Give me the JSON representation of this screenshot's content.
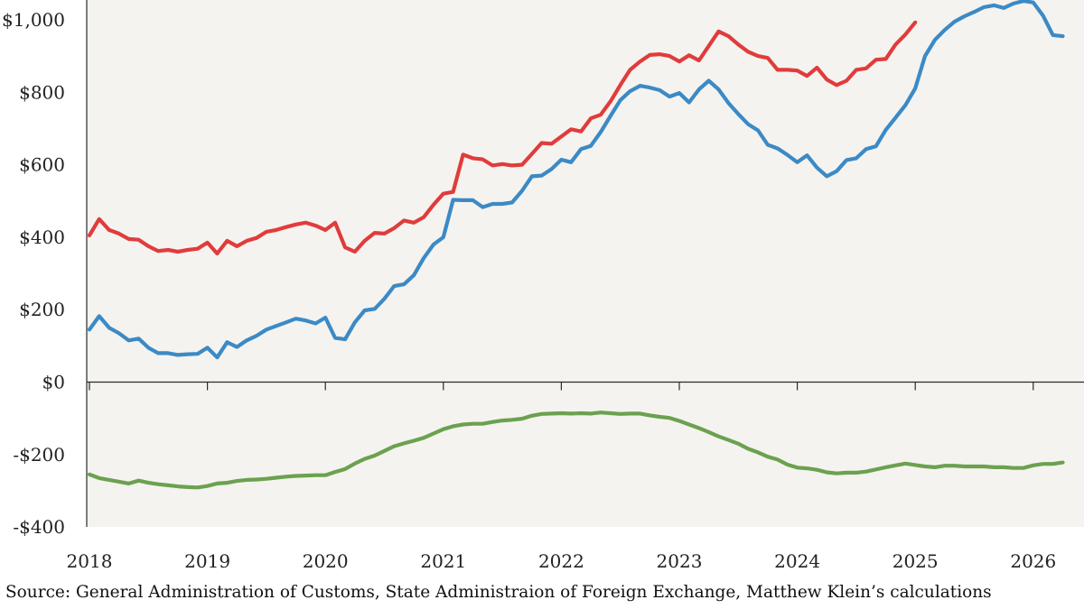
{
  "chart_data": {
    "type": "line",
    "source": "Source: General Administration of Customs, State Administraion of Foreign Exchange, Matthew Klein’s calculations",
    "x_labels": [
      "2018",
      "2019",
      "2020",
      "2021",
      "2022",
      "2023",
      "2024",
      "2025",
      "2026"
    ],
    "y_tick_labels": [
      "$1,000",
      "$800",
      "$600",
      "$400",
      "$200",
      "$0",
      "-$200",
      "-$400"
    ],
    "y_ticks": [
      1000,
      800,
      600,
      400,
      200,
      0,
      -200,
      -400
    ],
    "ylim": [
      -400,
      1000
    ],
    "grid": false,
    "series": [
      {
        "color": "#e03c3c",
        "x": [
          2018.0,
          2018.083,
          2018.167,
          2018.25,
          2018.333,
          2018.417,
          2018.5,
          2018.583,
          2018.667,
          2018.75,
          2018.833,
          2018.917,
          2019.0,
          2019.083,
          2019.167,
          2019.25,
          2019.333,
          2019.417,
          2019.5,
          2019.583,
          2019.667,
          2019.75,
          2019.833,
          2019.917,
          2020.0,
          2020.083,
          2020.167,
          2020.25,
          2020.333,
          2020.417,
          2020.5,
          2020.583,
          2020.667,
          2020.75,
          2020.833,
          2020.917,
          2021.0,
          2021.083,
          2021.167,
          2021.25,
          2021.333,
          2021.417,
          2021.5,
          2021.583,
          2021.667,
          2021.75,
          2021.833,
          2021.917,
          2022.0,
          2022.083,
          2022.167,
          2022.25,
          2022.333,
          2022.417,
          2022.5,
          2022.583,
          2022.667,
          2022.75,
          2022.833,
          2022.917,
          2023.0,
          2023.083,
          2023.167,
          2023.25,
          2023.333,
          2023.417,
          2023.5,
          2023.583,
          2023.667,
          2023.75,
          2023.833,
          2023.917,
          2024.0,
          2024.083,
          2024.167,
          2024.25,
          2024.333,
          2024.417,
          2024.5,
          2024.583,
          2024.667,
          2024.75,
          2024.833,
          2024.917,
          2025.0
        ],
        "values": [
          405,
          450,
          420,
          410,
          395,
          393,
          375,
          362,
          365,
          360,
          365,
          368,
          385,
          355,
          390,
          375,
          390,
          398,
          415,
          420,
          428,
          435,
          440,
          432,
          420,
          440,
          372,
          360,
          390,
          412,
          410,
          425,
          446,
          440,
          455,
          490,
          520,
          525,
          628,
          618,
          615,
          598,
          602,
          598,
          600,
          630,
          660,
          658,
          678,
          698,
          692,
          728,
          738,
          775,
          820,
          862,
          885,
          903,
          905,
          900,
          885,
          902,
          888,
          928,
          968,
          955,
          932,
          912,
          900,
          895,
          862,
          862,
          860,
          845,
          868,
          835,
          820,
          832,
          862,
          866,
          890,
          892,
          932,
          960,
          993
        ]
      },
      {
        "color": "#3b8ac6",
        "x": [
          2018.0,
          2018.083,
          2018.167,
          2018.25,
          2018.333,
          2018.417,
          2018.5,
          2018.583,
          2018.667,
          2018.75,
          2018.833,
          2018.917,
          2019.0,
          2019.083,
          2019.167,
          2019.25,
          2019.333,
          2019.417,
          2019.5,
          2019.583,
          2019.667,
          2019.75,
          2019.833,
          2019.917,
          2020.0,
          2020.083,
          2020.167,
          2020.25,
          2020.333,
          2020.417,
          2020.5,
          2020.583,
          2020.667,
          2020.75,
          2020.833,
          2020.917,
          2021.0,
          2021.083,
          2021.167,
          2021.25,
          2021.333,
          2021.417,
          2021.5,
          2021.583,
          2021.667,
          2021.75,
          2021.833,
          2021.917,
          2022.0,
          2022.083,
          2022.167,
          2022.25,
          2022.333,
          2022.417,
          2022.5,
          2022.583,
          2022.667,
          2022.75,
          2022.833,
          2022.917,
          2023.0,
          2023.083,
          2023.167,
          2023.25,
          2023.333,
          2023.417,
          2023.5,
          2023.583,
          2023.667,
          2023.75,
          2023.833,
          2023.917,
          2024.0,
          2024.083,
          2024.167,
          2024.25,
          2024.333,
          2024.417,
          2024.5,
          2024.583,
          2024.667,
          2024.75,
          2024.833,
          2024.917,
          2025.0,
          2025.083,
          2025.167,
          2025.25,
          2025.333,
          2025.417,
          2025.5,
          2025.583,
          2025.667,
          2025.75,
          2025.833,
          2025.917,
          2026.0,
          2026.083,
          2026.167,
          2026.25
        ],
        "values": [
          145,
          182,
          150,
          135,
          115,
          120,
          95,
          80,
          80,
          75,
          77,
          78,
          95,
          68,
          110,
          97,
          115,
          128,
          145,
          155,
          165,
          175,
          170,
          162,
          178,
          122,
          118,
          165,
          198,
          202,
          230,
          265,
          270,
          295,
          342,
          380,
          400,
          503,
          502,
          502,
          483,
          492,
          492,
          496,
          528,
          568,
          570,
          588,
          614,
          607,
          643,
          652,
          690,
          735,
          778,
          803,
          818,
          813,
          806,
          788,
          798,
          772,
          808,
          832,
          808,
          770,
          740,
          712,
          695,
          655,
          645,
          627,
          607,
          626,
          592,
          568,
          582,
          613,
          618,
          643,
          651,
          696,
          730,
          765,
          811,
          900,
          945,
          972,
          995,
          1010,
          1022,
          1035,
          1040,
          1033,
          1045,
          1052,
          1048,
          1012,
          958,
          955
        ]
      },
      {
        "color": "#6ba14f",
        "x": [
          2018.0,
          2018.083,
          2018.167,
          2018.25,
          2018.333,
          2018.417,
          2018.5,
          2018.583,
          2018.667,
          2018.75,
          2018.833,
          2018.917,
          2019.0,
          2019.083,
          2019.167,
          2019.25,
          2019.333,
          2019.417,
          2019.5,
          2019.583,
          2019.667,
          2019.75,
          2019.833,
          2019.917,
          2020.0,
          2020.083,
          2020.167,
          2020.25,
          2020.333,
          2020.417,
          2020.5,
          2020.583,
          2020.667,
          2020.75,
          2020.833,
          2020.917,
          2021.0,
          2021.083,
          2021.167,
          2021.25,
          2021.333,
          2021.417,
          2021.5,
          2021.583,
          2021.667,
          2021.75,
          2021.833,
          2021.917,
          2022.0,
          2022.083,
          2022.167,
          2022.25,
          2022.333,
          2022.417,
          2022.5,
          2022.583,
          2022.667,
          2022.75,
          2022.833,
          2022.917,
          2023.0,
          2023.083,
          2023.167,
          2023.25,
          2023.333,
          2023.417,
          2023.5,
          2023.583,
          2023.667,
          2023.75,
          2023.833,
          2023.917,
          2024.0,
          2024.083,
          2024.167,
          2024.25,
          2024.333,
          2024.417,
          2024.5,
          2024.583,
          2024.667,
          2024.75,
          2024.833,
          2024.917,
          2025.0,
          2025.083,
          2025.167,
          2025.25,
          2025.333,
          2025.417,
          2025.5,
          2025.583,
          2025.667,
          2025.75,
          2025.833,
          2025.917,
          2026.0,
          2026.083,
          2026.167,
          2026.25
        ],
        "values": [
          -255,
          -265,
          -270,
          -275,
          -280,
          -272,
          -278,
          -282,
          -285,
          -288,
          -290,
          -291,
          -287,
          -280,
          -278,
          -273,
          -270,
          -269,
          -267,
          -264,
          -261,
          -259,
          -258,
          -257,
          -257,
          -248,
          -240,
          -225,
          -212,
          -203,
          -190,
          -177,
          -169,
          -162,
          -154,
          -142,
          -130,
          -122,
          -117,
          -115,
          -115,
          -110,
          -106,
          -104,
          -101,
          -93,
          -88,
          -87,
          -86,
          -87,
          -86,
          -87,
          -84,
          -86,
          -88,
          -87,
          -87,
          -92,
          -96,
          -99,
          -107,
          -117,
          -127,
          -138,
          -150,
          -160,
          -170,
          -184,
          -194,
          -206,
          -214,
          -228,
          -236,
          -238,
          -242,
          -249,
          -252,
          -250,
          -250,
          -247,
          -241,
          -235,
          -230,
          -225,
          -229,
          -233,
          -235,
          -231,
          -231,
          -233,
          -233,
          -233,
          -235,
          -235,
          -237,
          -237,
          -230,
          -226,
          -226,
          -222
        ]
      }
    ]
  }
}
